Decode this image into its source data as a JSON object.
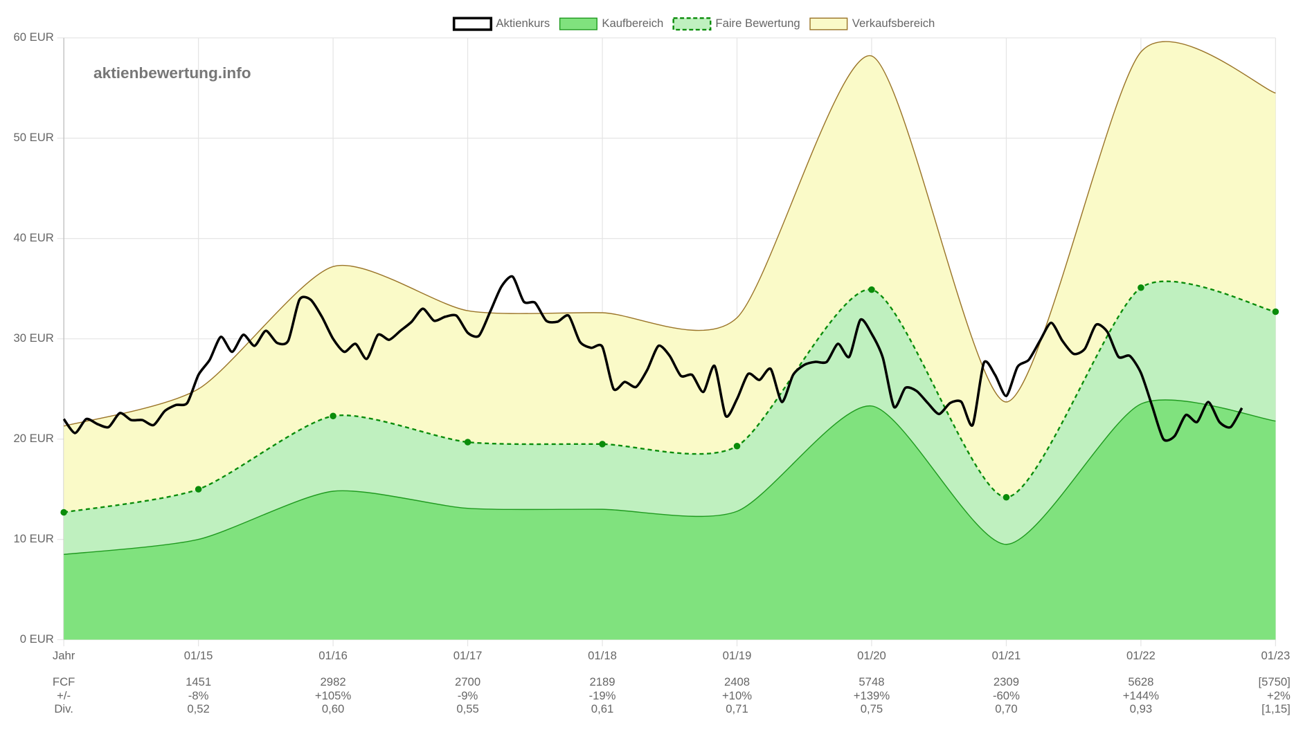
{
  "chart_data": {
    "type": "area",
    "watermark": "aktienbewertung.info",
    "ylim": [
      0,
      60
    ],
    "yticks": [
      {
        "value": 0,
        "label": "0 EUR"
      },
      {
        "value": 10,
        "label": "10 EUR"
      },
      {
        "value": 20,
        "label": "20 EUR"
      },
      {
        "value": 30,
        "label": "30 EUR"
      },
      {
        "value": 40,
        "label": "40 EUR"
      },
      {
        "value": 50,
        "label": "50 EUR"
      },
      {
        "value": 60,
        "label": "60 EUR"
      }
    ],
    "xlim": [
      "01/14",
      "01/23"
    ],
    "xticks": [
      {
        "value": "01/14",
        "label": "Jahr"
      },
      "01/15",
      "01/16",
      "01/17",
      "01/18",
      "01/19",
      "01/20",
      "01/21",
      "01/22",
      "01/23"
    ],
    "grid": true,
    "legend": "top",
    "series": [
      {
        "name": "Aktienkurs",
        "type": "line",
        "color": "#000000",
        "x": [
          "01/14",
          "02/14",
          "03/14",
          "04/14",
          "05/14",
          "06/14",
          "07/14",
          "08/14",
          "09/14",
          "10/14",
          "11/14",
          "12/14",
          "01/15",
          "02/15",
          "03/15",
          "04/15",
          "05/15",
          "06/15",
          "07/15",
          "08/15",
          "09/15",
          "10/15",
          "11/15",
          "12/15",
          "01/16",
          "02/16",
          "03/16",
          "04/16",
          "05/16",
          "06/16",
          "07/16",
          "08/16",
          "09/16",
          "10/16",
          "11/16",
          "12/16",
          "01/17",
          "02/17",
          "03/17",
          "04/17",
          "05/17",
          "06/17",
          "07/17",
          "08/17",
          "09/17",
          "10/17",
          "11/17",
          "12/17",
          "01/18",
          "02/18",
          "03/18",
          "04/18",
          "05/18",
          "06/18",
          "07/18",
          "08/18",
          "09/18",
          "10/18",
          "11/18",
          "12/18",
          "01/19",
          "02/19",
          "03/19",
          "04/19",
          "05/19",
          "06/19",
          "07/19",
          "08/19",
          "09/19",
          "10/19",
          "11/19",
          "12/19",
          "01/20",
          "02/20",
          "03/20",
          "04/20",
          "05/20",
          "06/20",
          "07/20",
          "08/20",
          "09/20",
          "10/20",
          "11/20",
          "12/20",
          "01/21",
          "02/21",
          "03/21",
          "04/21",
          "05/21",
          "06/21",
          "07/21",
          "08/21",
          "09/21",
          "10/21",
          "11/21",
          "12/21",
          "01/22",
          "02/22",
          "03/22",
          "04/22",
          "05/22",
          "06/22",
          "07/22",
          "08/22",
          "09/22",
          "10/22"
        ],
        "values": [
          22.0,
          20.6,
          22.0,
          21.5,
          21.2,
          22.6,
          21.9,
          21.9,
          21.4,
          22.8,
          23.4,
          23.6,
          26.4,
          27.9,
          30.2,
          28.7,
          30.4,
          29.3,
          30.8,
          29.6,
          29.8,
          33.9,
          33.9,
          32.2,
          30.0,
          28.7,
          29.5,
          28.0,
          30.4,
          29.9,
          30.8,
          31.7,
          33.0,
          31.8,
          32.2,
          32.3,
          30.6,
          30.3,
          32.7,
          35.2,
          36.2,
          33.7,
          33.6,
          31.8,
          31.7,
          32.3,
          29.7,
          29.1,
          29.2,
          25.0,
          25.7,
          25.2,
          26.9,
          29.3,
          28.3,
          26.3,
          26.4,
          24.7,
          27.3,
          22.3,
          24.0,
          26.5,
          25.9,
          27.0,
          23.7,
          26.4,
          27.4,
          27.7,
          27.7,
          29.5,
          28.2,
          31.9,
          30.5,
          28.1,
          23.2,
          25.1,
          24.8,
          23.6,
          22.5,
          23.6,
          23.7,
          21.4,
          27.6,
          26.4,
          24.3,
          27.2,
          27.9,
          29.8,
          31.6,
          29.8,
          28.5,
          29.0,
          31.4,
          30.7,
          28.2,
          28.3,
          26.6,
          23.3,
          20.0,
          20.3,
          22.4,
          21.7,
          23.7,
          21.7,
          21.2,
          23.1
        ]
      },
      {
        "name": "Kaufbereich",
        "type": "area",
        "color": "#80e27e",
        "border": "#1f9a1f",
        "x": [
          "01/14",
          "01/15",
          "01/16",
          "01/17",
          "01/18",
          "01/19",
          "01/20",
          "01/21",
          "01/22",
          "01/23"
        ],
        "values": [
          8.5,
          10.0,
          14.8,
          13.1,
          13.0,
          12.8,
          23.3,
          9.5,
          23.5,
          21.8
        ]
      },
      {
        "name": "Faire Bewertung",
        "type": "area",
        "color": "#bff0bf",
        "border": "#0a8c0a",
        "dashed": true,
        "x": [
          "01/14",
          "01/15",
          "01/16",
          "01/17",
          "01/18",
          "01/19",
          "01/20",
          "01/21",
          "01/22",
          "01/23"
        ],
        "values": [
          12.7,
          15.0,
          22.3,
          19.7,
          19.5,
          19.3,
          34.9,
          14.2,
          35.1,
          32.7
        ]
      },
      {
        "name": "Verkaufsbereich",
        "type": "area",
        "color": "#fafac8",
        "border": "#9a7428",
        "x": [
          "01/14",
          "01/15",
          "01/16",
          "01/17",
          "01/18",
          "01/19",
          "01/20",
          "01/21",
          "01/22",
          "01/23"
        ],
        "values": [
          21.3,
          25.0,
          37.2,
          32.8,
          32.6,
          32.1,
          58.2,
          23.7,
          58.6,
          54.5
        ]
      }
    ],
    "table": {
      "rows": [
        {
          "label": "FCF",
          "values": [
            1451,
            2982,
            2700,
            2189,
            2408,
            5748,
            2309,
            5628,
            "[5750]"
          ]
        },
        {
          "label": "+/-",
          "values": [
            "-8%",
            "+105%",
            "-9%",
            "-19%",
            "+10%",
            "+139%",
            "-60%",
            "+144%",
            "+2%"
          ]
        },
        {
          "label": "Div.",
          "values": [
            "0,52",
            "0,60",
            "0,55",
            "0,61",
            "0,71",
            "0,75",
            "0,70",
            "0,93",
            "[1,15]"
          ]
        }
      ]
    }
  }
}
